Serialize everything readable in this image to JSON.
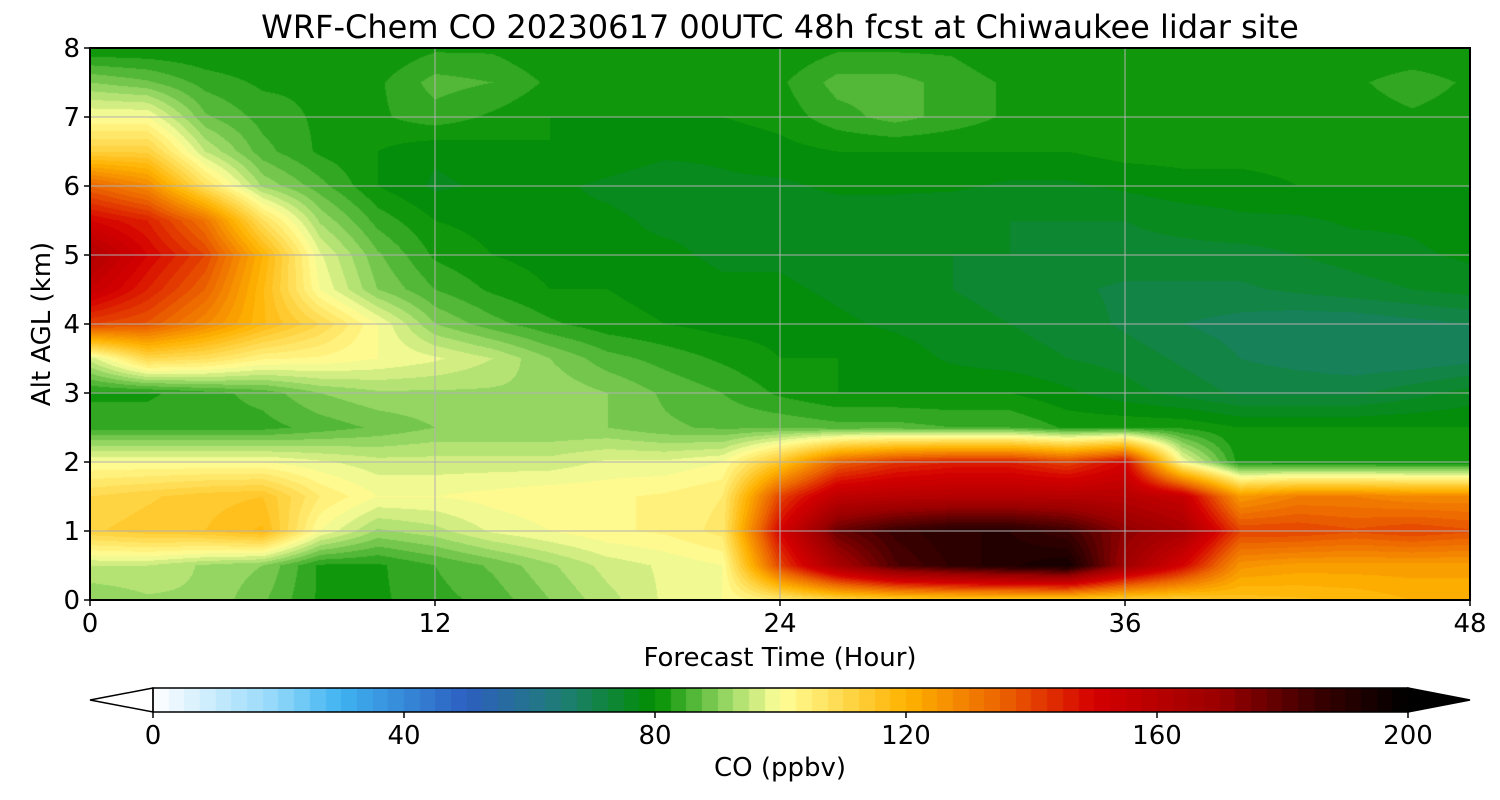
{
  "chart_data": {
    "type": "heatmap",
    "title": "WRF-Chem CO  20230617 00UTC 48h fcst at Chiwaukee lidar site",
    "xlabel": "Forecast Time (Hour)",
    "ylabel": "Alt AGL (km)",
    "xlim": [
      0,
      48
    ],
    "ylim": [
      0,
      8
    ],
    "xticks": [
      0,
      12,
      24,
      36,
      48
    ],
    "yticks": [
      0,
      1,
      2,
      3,
      4,
      5,
      6,
      7,
      8
    ],
    "grid": true,
    "colorbar": {
      "label": "CO  (ppbv)",
      "range": [
        0,
        200
      ],
      "ticks": [
        0,
        40,
        80,
        120,
        160,
        200
      ],
      "extend": "both",
      "orientation": "horizontal",
      "placement": "bottom",
      "stops": [
        {
          "value": 0,
          "color": "#ffffff"
        },
        {
          "value": 20,
          "color": "#8fd6fa"
        },
        {
          "value": 30,
          "color": "#3fb2f0"
        },
        {
          "value": 50,
          "color": "#2d5fc0"
        },
        {
          "value": 65,
          "color": "#1f7c76"
        },
        {
          "value": 80,
          "color": "#008f00"
        },
        {
          "value": 92,
          "color": "#9fdb6a"
        },
        {
          "value": 100,
          "color": "#ffff99"
        },
        {
          "value": 120,
          "color": "#ffb200"
        },
        {
          "value": 135,
          "color": "#ec6400"
        },
        {
          "value": 150,
          "color": "#d50000"
        },
        {
          "value": 170,
          "color": "#9a0000"
        },
        {
          "value": 185,
          "color": "#3c0000"
        },
        {
          "value": 200,
          "color": "#000000"
        }
      ]
    },
    "x": [
      0,
      2,
      4,
      6,
      8,
      10,
      12,
      14,
      16,
      18,
      20,
      22,
      24,
      26,
      28,
      30,
      32,
      34,
      36,
      38,
      40,
      42,
      44,
      46,
      48
    ],
    "y": [
      0,
      0.5,
      1,
      1.5,
      2,
      2.5,
      3,
      3.5,
      4,
      4.5,
      5,
      5.5,
      6,
      6.5,
      7,
      7.5,
      8
    ],
    "z": [
      [
        90,
        92,
        92,
        88,
        82,
        82,
        84,
        86,
        90,
        94,
        98,
        100,
        105,
        110,
        112,
        113,
        113,
        113,
        112,
        112,
        116,
        117,
        118,
        120,
        120
      ],
      [
        95,
        95,
        92,
        90,
        82,
        82,
        85,
        88,
        92,
        96,
        98,
        100,
        140,
        165,
        182,
        188,
        192,
        195,
        168,
        150,
        126,
        124,
        124,
        124,
        124
      ],
      [
        112,
        114,
        115,
        118,
        100,
        92,
        94,
        98,
        100,
        102,
        103,
        106,
        150,
        178,
        186,
        190,
        190,
        185,
        172,
        165,
        140,
        140,
        138,
        140,
        138
      ],
      [
        110,
        112,
        114,
        115,
        105,
        100,
        100,
        101,
        102,
        102,
        103,
        105,
        140,
        158,
        160,
        161,
        161,
        161,
        160,
        155,
        125,
        130,
        130,
        128,
        128
      ],
      [
        100,
        100,
        100,
        100,
        98,
        96,
        96,
        96,
        96,
        98,
        98,
        100,
        115,
        135,
        142,
        145,
        145,
        140,
        150,
        100,
        81,
        80,
        80,
        80,
        80
      ],
      [
        84,
        84,
        84,
        84,
        86,
        88,
        90,
        90,
        90,
        90,
        88,
        87,
        87,
        86,
        86,
        85,
        85,
        82,
        82,
        82,
        80,
        80,
        80,
        80,
        80
      ],
      [
        82,
        82,
        84,
        86,
        90,
        92,
        92,
        92,
        92,
        90,
        87,
        85,
        82,
        80,
        80,
        80,
        80,
        78,
        76,
        74,
        72,
        72,
        72,
        74,
        76
      ],
      [
        96,
        110,
        108,
        103,
        102,
        100,
        98,
        95,
        90,
        86,
        84,
        82,
        80,
        80,
        79,
        77,
        76,
        75,
        74,
        72,
        70,
        69,
        68,
        68,
        69
      ],
      [
        140,
        137,
        128,
        118,
        110,
        100,
        90,
        86,
        83,
        81,
        80,
        79,
        79,
        78,
        77,
        76,
        75,
        74,
        72,
        70,
        69,
        68,
        68,
        69,
        70
      ],
      [
        155,
        145,
        135,
        118,
        100,
        90,
        85,
        82,
        80,
        80,
        79,
        78,
        78,
        77,
        76,
        75,
        74,
        73,
        72,
        72,
        72,
        73,
        74,
        75,
        76
      ],
      [
        162,
        150,
        140,
        120,
        98,
        88,
        82,
        80,
        79,
        78,
        78,
        77,
        77,
        76,
        76,
        75,
        75,
        74,
        74,
        74,
        74,
        75,
        76,
        77,
        78
      ],
      [
        150,
        145,
        132,
        108,
        92,
        84,
        80,
        79,
        78,
        78,
        77,
        77,
        76,
        76,
        76,
        75,
        75,
        75,
        75,
        76,
        77,
        77,
        78,
        78,
        79
      ],
      [
        135,
        128,
        108,
        92,
        86,
        80,
        77,
        78,
        78,
        77,
        76,
        77,
        77,
        78,
        78,
        78,
        77,
        77,
        78,
        79,
        79,
        80,
        80,
        80,
        80
      ],
      [
        112,
        112,
        95,
        86,
        82,
        80,
        78,
        79,
        80,
        79,
        78,
        78,
        79,
        80,
        80,
        80,
        80,
        80,
        81,
        81,
        81,
        81,
        82,
        82,
        82
      ],
      [
        100,
        100,
        88,
        84,
        82,
        82,
        84,
        82,
        80,
        80,
        80,
        80,
        81,
        84,
        86,
        84,
        82,
        81,
        81,
        82,
        81,
        80,
        81,
        82,
        81
      ],
      [
        90,
        88,
        84,
        82,
        82,
        82,
        86,
        85,
        82,
        80,
        80,
        80,
        82,
        86,
        86,
        84,
        82,
        81,
        81,
        82,
        81,
        82,
        82,
        84,
        82
      ],
      [
        80,
        80,
        80,
        80,
        80,
        80,
        82,
        82,
        80,
        80,
        80,
        80,
        80,
        82,
        82,
        82,
        80,
        80,
        80,
        80,
        80,
        80,
        80,
        80,
        80
      ]
    ]
  }
}
